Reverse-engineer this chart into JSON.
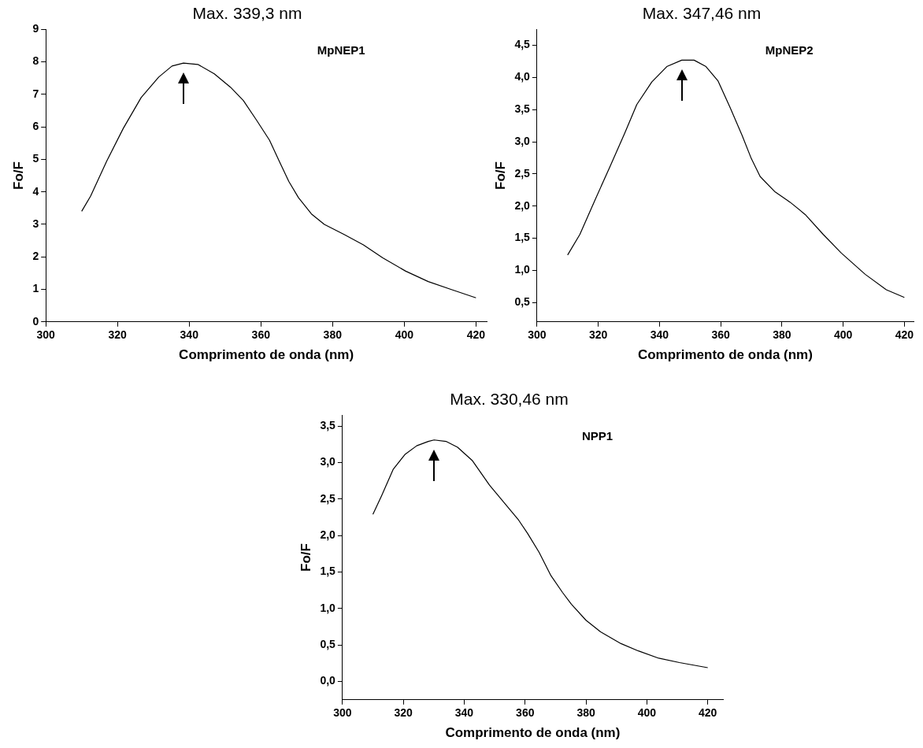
{
  "chart_data": [
    {
      "type": "line",
      "title": "Max. 339,3 nm",
      "xlabel": "Comprimento de onda (nm)",
      "ylabel": "Fo/F",
      "annotations": [
        "MpNEP1"
      ],
      "x": [
        310,
        312.5,
        317,
        321.6,
        326.6,
        331.5,
        335.2,
        338.4,
        342.4,
        347,
        351.5,
        355.1,
        358.7,
        362.4,
        365.1,
        367.8,
        370.5,
        374.1,
        377.7,
        383.2,
        388.6,
        394,
        400.4,
        406.7,
        413,
        420
      ],
      "series": [
        {
          "color": "#000000",
          "values": [
            3.4,
            3.87,
            4.95,
            5.95,
            6.9,
            7.53,
            7.87,
            7.96,
            7.92,
            7.63,
            7.22,
            6.81,
            6.22,
            5.59,
            4.95,
            4.32,
            3.82,
            3.32,
            3.0,
            2.69,
            2.37,
            1.97,
            1.56,
            1.24,
            1.0,
            0.74
          ]
        }
      ],
      "xlim": [
        300,
        423
      ],
      "xticks": [
        300,
        320,
        340,
        360,
        380,
        400,
        420
      ],
      "ylim": [
        0,
        9
      ],
      "yticks": [
        0,
        1,
        2,
        3,
        4,
        5,
        6,
        7,
        8,
        9
      ]
    },
    {
      "type": "line",
      "title": "Max. 347,46 nm",
      "xlabel": "Comprimento de onda (nm)",
      "ylabel": "Fo/F",
      "annotations": [
        "MpNEP2"
      ],
      "x": [
        310,
        314,
        318.9,
        323.8,
        328.7,
        332.6,
        337.5,
        342.4,
        347.3,
        351.3,
        355.2,
        359.1,
        363.1,
        367,
        370,
        372.9,
        377.8,
        382.7,
        387.6,
        393.5,
        399.4,
        407.2,
        414.1,
        420
      ],
      "series": [
        {
          "color": "#000000",
          "values": [
            1.24,
            1.56,
            2.09,
            2.61,
            3.14,
            3.58,
            3.93,
            4.17,
            4.27,
            4.27,
            4.17,
            3.95,
            3.53,
            3.1,
            2.74,
            2.46,
            2.22,
            2.06,
            1.87,
            1.56,
            1.27,
            0.94,
            0.7,
            0.58
          ]
        }
      ],
      "xlim": [
        300,
        423
      ],
      "xticks": [
        300,
        320,
        340,
        360,
        380,
        400,
        420
      ],
      "ylim": [
        0.2,
        4.75
      ],
      "yticks": [
        {
          "value": 0.5,
          "label": "0,5"
        },
        {
          "value": 1,
          "label": "1,0"
        },
        {
          "value": 1.5,
          "label": "1,5"
        },
        {
          "value": 2,
          "label": "2,0"
        },
        {
          "value": 2.5,
          "label": "2,5"
        },
        {
          "value": 3,
          "label": "3,0"
        },
        {
          "value": 3.5,
          "label": "3,5"
        },
        {
          "value": 4,
          "label": "4,0"
        },
        {
          "value": 4.5,
          "label": "4,5"
        }
      ]
    },
    {
      "type": "line",
      "title": "Max. 330,46 nm",
      "xlabel": "Comprimento de onda (nm)",
      "ylabel": "Fo/F",
      "annotations": [
        "NPP1"
      ],
      "x": [
        310,
        312.9,
        316.7,
        320.5,
        324.4,
        328.2,
        330.1,
        334,
        337.8,
        342.6,
        348.3,
        353.1,
        357.9,
        360.8,
        364.6,
        368.5,
        372.3,
        375.2,
        380,
        384.8,
        391.5,
        397.2,
        403.9,
        410.7,
        420
      ],
      "series": [
        {
          "color": "#000000",
          "values": [
            2.29,
            2.55,
            2.91,
            3.11,
            3.23,
            3.29,
            3.31,
            3.29,
            3.21,
            3.03,
            2.69,
            2.45,
            2.21,
            2.03,
            1.77,
            1.45,
            1.22,
            1.06,
            0.84,
            0.68,
            0.52,
            0.42,
            0.32,
            0.26,
            0.19
          ]
        }
      ],
      "xlim": [
        300,
        425
      ],
      "xticks": [
        300,
        320,
        340,
        360,
        380,
        400,
        420
      ],
      "ylim": [
        -0.25,
        3.65
      ],
      "yticks": [
        {
          "value": 0,
          "label": "0,0"
        },
        {
          "value": 0.5,
          "label": "0,5"
        },
        {
          "value": 1,
          "label": "1,0"
        },
        {
          "value": 1.5,
          "label": "1,5"
        },
        {
          "value": 2,
          "label": "2,0"
        },
        {
          "value": 2.5,
          "label": "2,5"
        },
        {
          "value": 3,
          "label": "3,0"
        },
        {
          "value": 3.5,
          "label": "3,5"
        }
      ]
    }
  ]
}
